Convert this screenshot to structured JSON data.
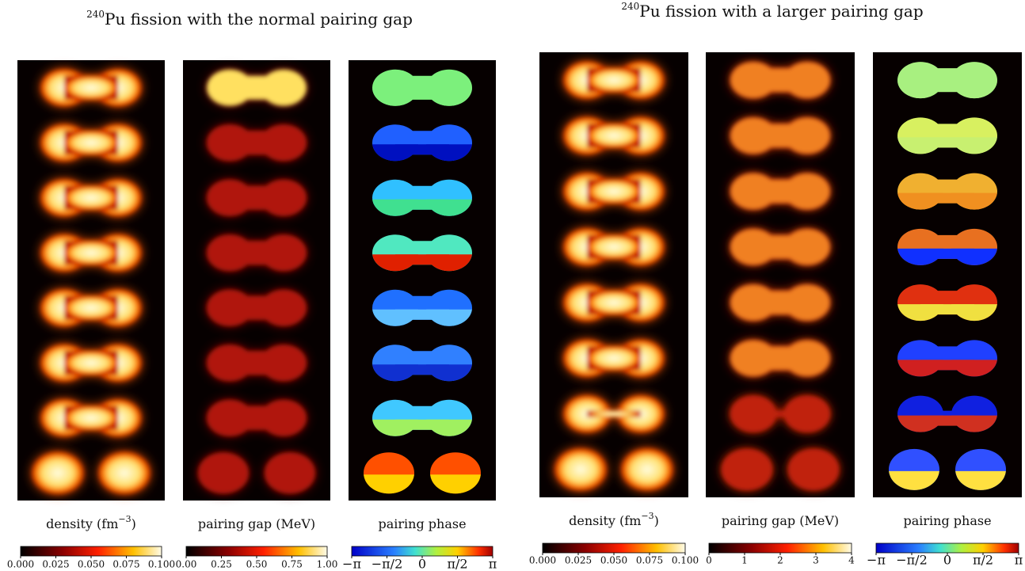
{
  "figures": [
    {
      "title": {
        "superscript": "240",
        "text": "Pu fission with the normal pairing gap"
      },
      "panels": [
        {
          "label": {
            "prefix": "density (fm",
            "superscript": "−3",
            "suffix": ")"
          },
          "colorbar_ticks": [
            "0.000",
            "0.025",
            "0.050",
            "0.075",
            "0.100"
          ]
        },
        {
          "label": {
            "prefix": "pairing gap (MeV)"
          },
          "colorbar_ticks": [
            "0.00",
            "0.25",
            "0.50",
            "0.75",
            "1.00"
          ]
        },
        {
          "label": {
            "prefix": "pairing phase"
          },
          "colorbar_ticks": [
            "−π",
            "−π/2",
            "0",
            "π/2",
            "π"
          ]
        }
      ]
    },
    {
      "title": {
        "superscript": "240",
        "text": "Pu fission with a larger pairing gap"
      },
      "panels": [
        {
          "label": {
            "prefix": "density (fm",
            "superscript": "−3",
            "suffix": ")"
          },
          "colorbar_ticks": [
            "0.000",
            "0.025",
            "0.050",
            "0.075",
            "0.100"
          ]
        },
        {
          "label": {
            "prefix": "pairing gap (MeV)"
          },
          "colorbar_ticks": [
            "0",
            "1",
            "2",
            "3",
            "4"
          ]
        },
        {
          "label": {
            "prefix": "pairing phase"
          },
          "colorbar_ticks": [
            "−π",
            "−π/2",
            "0",
            "π/2",
            "π"
          ]
        }
      ]
    }
  ]
}
